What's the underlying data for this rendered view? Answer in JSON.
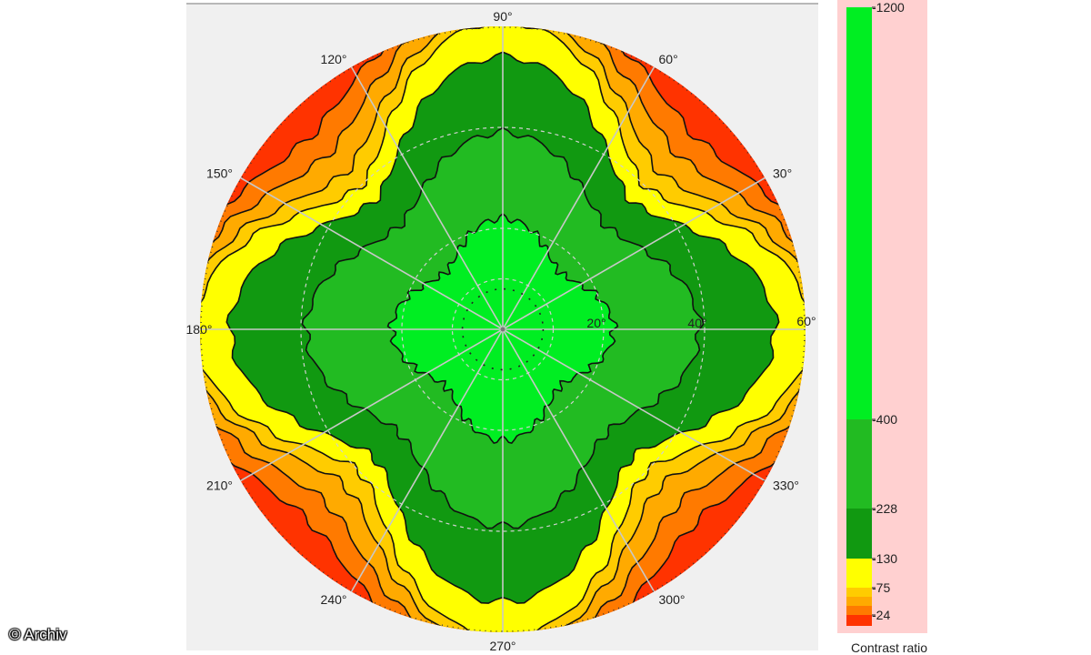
{
  "chart_data": {
    "type": "heatmap",
    "title": "",
    "subtitle": "",
    "plot": "polar contour",
    "angular_labels": [
      "90°",
      "60°",
      "30°",
      "60°",
      "330°",
      "300°",
      "270°",
      "240°",
      "210°",
      "180°",
      "150°",
      "120°"
    ],
    "radial_labels": [
      "20°",
      "40°",
      "60°"
    ],
    "radial_max": 60,
    "colorbar": {
      "label": "Contrast ratio",
      "tick_labels": [
        "1200",
        "400",
        "228",
        "130",
        "75",
        "24"
      ],
      "ticks": [
        1200,
        400,
        228,
        130,
        75,
        24
      ],
      "bands": [
        {
          "min": 400,
          "max": 1200,
          "color": "#00ee22"
        },
        {
          "min": 228,
          "max": 400,
          "color": "#22bb22"
        },
        {
          "min": 130,
          "max": 228,
          "color": "#119911"
        },
        {
          "min": 75,
          "max": 130,
          "color": "#ffff00"
        },
        {
          "min": 50,
          "max": 75,
          "color": "#ffcc00"
        },
        {
          "min": 35,
          "max": 50,
          "color": "#ffaa00"
        },
        {
          "min": 24,
          "max": 35,
          "color": "#ff7a00"
        },
        {
          "min": 0,
          "max": 24,
          "color": "#ff3300"
        }
      ]
    },
    "contour_levels": [
      400,
      228,
      130,
      75,
      50,
      35,
      24
    ],
    "contour_radius_deg": {
      "400": {
        "base": 16,
        "amp": 6
      },
      "228": {
        "base": 29,
        "amp": 10
      },
      "130": {
        "base": 36,
        "amp": 18
      },
      "75": {
        "base": 40,
        "amp": 21
      },
      "50": {
        "base": 44,
        "amp": 19
      },
      "35": {
        "base": 49,
        "amp": 16
      },
      "24": {
        "base": 54,
        "amp": 13
      }
    }
  },
  "watermark": "© Archiv"
}
